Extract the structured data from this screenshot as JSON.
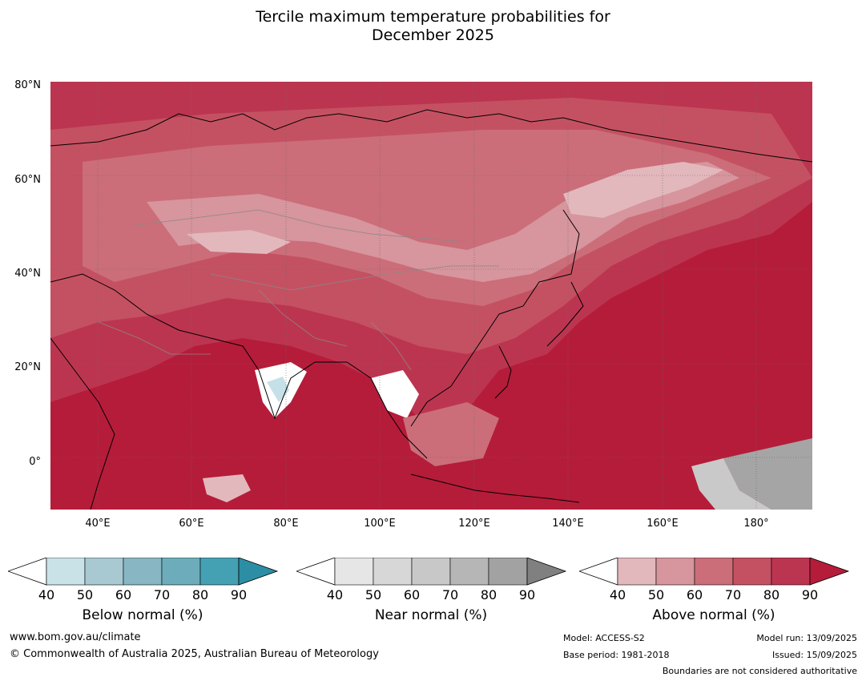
{
  "title_line1": "Tercile maximum temperature probabilities for",
  "title_line2": "December 2025",
  "map": {
    "lat_labels": [
      "80°N",
      "60°N",
      "40°N",
      "20°N",
      "0°"
    ],
    "lon_labels": [
      "40°E",
      "60°E",
      "80°E",
      "100°E",
      "120°E",
      "140°E",
      "160°E",
      "180°"
    ],
    "lat_range": [
      -10,
      80
    ],
    "lon_range": [
      30,
      191
    ],
    "dominant_category": "above-normal",
    "colors": {
      "above_90": "#b51c3a",
      "above_80": "#bc3550",
      "above_70": "#c45162",
      "above_60": "#cb6e7a",
      "above_50": "#d7959d",
      "above_40": "#e2b8bd",
      "near_60": "#c9c9c9",
      "near_80": "#a5a5a5",
      "below_40": "#c6e0e7"
    }
  },
  "colorbars": [
    {
      "name": "below",
      "label": "Below normal (%)",
      "ticks": [
        "40",
        "50",
        "60",
        "70",
        "80",
        "90"
      ],
      "colors": [
        "#ffffff",
        "#c9e2e8",
        "#a8c9d1",
        "#88b6c2",
        "#6dadbb",
        "#44a1b3",
        "#2c8ea4"
      ]
    },
    {
      "name": "near",
      "label": "Near normal (%)",
      "ticks": [
        "40",
        "50",
        "60",
        "70",
        "80",
        "90"
      ],
      "colors": [
        "#ffffff",
        "#e6e6e6",
        "#d7d7d7",
        "#c8c8c8",
        "#b6b6b6",
        "#a2a2a2",
        "#808080"
      ]
    },
    {
      "name": "above",
      "label": "Above normal (%)",
      "ticks": [
        "40",
        "50",
        "60",
        "70",
        "80",
        "90"
      ],
      "colors": [
        "#ffffff",
        "#e2b8bd",
        "#d7959d",
        "#cb6e7a",
        "#c45162",
        "#bc3550",
        "#b51c3a"
      ]
    }
  ],
  "footer": {
    "website": "www.bom.gov.au/climate",
    "copyright": "© Commonwealth of Australia 2025, Australian Bureau of Meteorology",
    "model": "Model: ACCESS-S2",
    "base_period": "Base period: 1981-2018",
    "model_run": "Model run: 13/09/2025",
    "issued": "Issued: 15/09/2025",
    "disclaimer": "Boundaries are not considered authoritative"
  }
}
